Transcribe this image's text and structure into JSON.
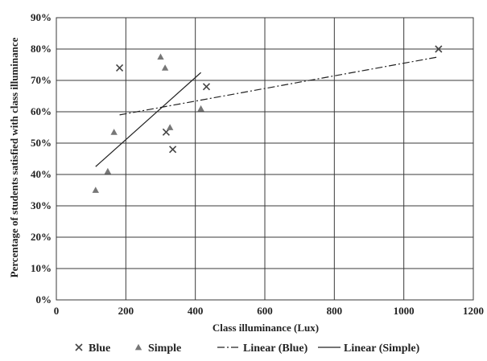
{
  "chart_data": {
    "type": "scatter",
    "title": "",
    "xlabel": "Class illuminance (Lux)",
    "ylabel": "Percentage of students satisfied with class illuminance",
    "xlim": [
      0,
      1200
    ],
    "ylim": [
      0,
      90
    ],
    "x_ticks": [
      "0",
      "200",
      "400",
      "600",
      "800",
      "1000",
      "1200"
    ],
    "y_ticks": [
      "0%",
      "10%",
      "20%",
      "30%",
      "40%",
      "50%",
      "60%",
      "70%",
      "80%",
      "90%"
    ],
    "grid": true,
    "legend_position": "bottom",
    "series": [
      {
        "name": "Blue",
        "marker": "x",
        "color": "#444444",
        "points": [
          [
            182,
            74
          ],
          [
            432,
            68
          ],
          [
            316,
            53.5
          ],
          [
            335,
            48
          ],
          [
            1100,
            80
          ]
        ]
      },
      {
        "name": "Simple",
        "marker": "triangle",
        "color": "#777777",
        "points": [
          [
            300,
            77.5
          ],
          [
            313,
            74
          ],
          [
            327,
            55
          ],
          [
            416,
            61
          ],
          [
            166,
            53.5
          ],
          [
            148,
            41
          ],
          [
            113,
            35
          ]
        ]
      }
    ],
    "trendlines": [
      {
        "name": "Linear (Blue)",
        "style": "dash-dot",
        "color": "#222222",
        "from": [
          182,
          59
        ],
        "to": [
          1100,
          77.5
        ]
      },
      {
        "name": "Linear (Simple)",
        "style": "solid",
        "color": "#222222",
        "from": [
          113,
          42.5
        ],
        "to": [
          416,
          72.5
        ]
      }
    ],
    "legend": [
      {
        "label": "Blue",
        "symbol": "x"
      },
      {
        "label": "Simple",
        "symbol": "triangle"
      },
      {
        "label": "Linear (Blue)",
        "symbol": "dash-dot"
      },
      {
        "label": "Linear (Simple)",
        "symbol": "solid"
      }
    ]
  }
}
